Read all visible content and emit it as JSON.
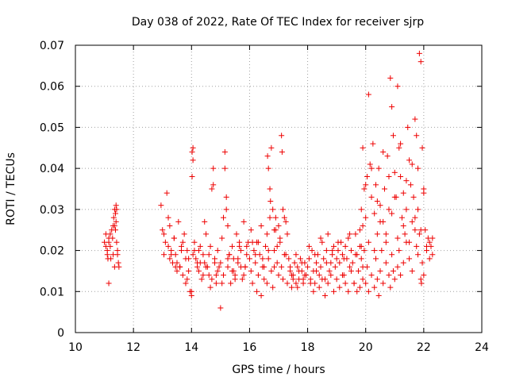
{
  "chart_data": {
    "type": "scatter",
    "title": "Day 038 of 2022, Rate Of TEC Index for receiver sjrp",
    "xlabel": "GPS time / hours",
    "ylabel": "ROTI / TECUs",
    "xlim": [
      10,
      24
    ],
    "ylim": [
      0,
      0.07
    ],
    "xticks": [
      "10",
      "12",
      "14",
      "16",
      "18",
      "20",
      "22",
      "24"
    ],
    "yticks": [
      "0",
      "0.01",
      "0.02",
      "0.03",
      "0.04",
      "0.05",
      "0.06",
      "0.07"
    ],
    "grid": true,
    "marker": "+",
    "color": "#ee0000",
    "series": [
      {
        "name": "ROTI",
        "x": [
          11.0,
          11.05,
          11.1,
          11.12,
          11.15,
          11.2,
          11.25,
          11.3,
          11.32,
          11.35,
          11.38,
          11.4,
          11.42,
          11.45,
          11.48,
          11.5,
          11.05,
          11.15,
          11.22,
          11.28,
          11.35,
          11.45,
          11.1,
          11.2,
          11.3,
          11.4,
          11.35,
          11.38,
          11.42,
          11.15,
          12.95,
          13.0,
          13.05,
          13.1,
          13.15,
          13.2,
          13.25,
          13.3,
          13.35,
          13.4,
          13.45,
          13.5,
          13.55,
          13.6,
          13.65,
          13.7,
          13.75,
          13.8,
          13.85,
          13.9,
          13.95,
          14.0,
          14.02,
          14.05,
          14.1,
          14.15,
          14.2,
          14.25,
          14.3,
          14.35,
          14.4,
          14.45,
          14.5,
          14.55,
          14.6,
          14.65,
          14.7,
          14.75,
          14.8,
          14.85,
          14.9,
          14.95,
          15.0,
          15.05,
          15.1,
          15.15,
          15.2,
          15.25,
          15.3,
          15.35,
          15.4,
          15.45,
          15.5,
          15.55,
          15.6,
          15.65,
          15.7,
          15.75,
          15.8,
          15.85,
          15.9,
          15.95,
          13.2,
          13.3,
          13.4,
          13.5,
          13.6,
          13.7,
          13.8,
          13.9,
          14.0,
          14.02,
          14.05,
          14.1,
          14.2,
          14.3,
          14.4,
          14.5,
          14.6,
          14.7,
          14.75,
          14.8,
          14.9,
          15.0,
          15.1,
          15.15,
          15.2,
          15.25,
          15.3,
          15.4,
          15.5,
          15.6,
          15.7,
          15.8,
          15.9,
          13.05,
          13.25,
          13.45,
          13.65,
          13.85,
          14.05,
          14.25,
          14.45,
          14.65,
          14.85,
          15.05,
          15.25,
          15.45,
          15.65,
          15.85,
          16.0,
          16.05,
          16.1,
          16.15,
          16.2,
          16.25,
          16.3,
          16.35,
          16.4,
          16.45,
          16.5,
          16.55,
          16.6,
          16.65,
          16.7,
          16.75,
          16.8,
          16.85,
          16.9,
          16.95,
          17.0,
          17.05,
          17.1,
          17.15,
          17.2,
          17.25,
          17.3,
          17.35,
          17.4,
          17.45,
          17.5,
          17.55,
          17.6,
          17.65,
          17.7,
          17.75,
          17.8,
          17.85,
          17.9,
          17.95,
          16.1,
          16.2,
          16.3,
          16.4,
          16.5,
          16.6,
          16.62,
          16.65,
          16.7,
          16.72,
          16.75,
          16.8,
          16.85,
          16.9,
          16.95,
          17.0,
          17.1,
          17.12,
          17.15,
          17.2,
          17.3,
          17.4,
          17.5,
          17.6,
          17.7,
          17.8,
          17.9,
          16.05,
          16.25,
          16.45,
          16.65,
          16.85,
          17.05,
          17.25,
          17.45,
          17.65,
          17.85,
          18.0,
          18.05,
          18.1,
          18.15,
          18.2,
          18.25,
          18.3,
          18.35,
          18.4,
          18.45,
          18.5,
          18.55,
          18.6,
          18.65,
          18.7,
          18.75,
          18.8,
          18.85,
          18.9,
          18.95,
          19.0,
          19.05,
          19.1,
          19.15,
          19.2,
          19.25,
          19.3,
          19.35,
          19.4,
          19.45,
          19.5,
          19.55,
          19.6,
          19.65,
          19.7,
          19.75,
          19.8,
          19.85,
          19.9,
          19.95,
          18.1,
          18.2,
          18.3,
          18.4,
          18.5,
          18.6,
          18.7,
          18.8,
          18.9,
          19.0,
          19.1,
          19.2,
          19.3,
          19.4,
          19.5,
          19.6,
          19.7,
          19.8,
          19.9,
          18.05,
          18.25,
          18.45,
          18.65,
          18.85,
          19.05,
          19.25,
          19.45,
          19.65,
          19.85,
          19.8,
          19.85,
          19.9,
          19.95,
          20.0,
          20.05,
          20.1,
          20.15,
          20.2,
          20.25,
          20.3,
          20.35,
          20.4,
          20.45,
          20.5,
          20.55,
          20.6,
          20.65,
          20.7,
          20.75,
          20.8,
          20.85,
          20.9,
          20.95,
          21.0,
          21.05,
          21.1,
          21.15,
          21.2,
          21.25,
          21.3,
          21.35,
          21.4,
          21.45,
          21.5,
          21.55,
          21.6,
          21.65,
          21.7,
          21.75,
          21.8,
          21.85,
          21.9,
          21.95,
          22.0,
          22.05,
          22.1,
          22.15,
          22.2,
          22.25,
          22.3,
          20.0,
          20.05,
          20.1,
          20.2,
          20.3,
          20.35,
          20.4,
          20.45,
          20.5,
          20.6,
          20.7,
          20.8,
          20.85,
          20.9,
          20.95,
          21.0,
          21.1,
          21.15,
          21.2,
          21.3,
          21.4,
          21.5,
          21.6,
          21.7,
          21.75,
          21.8,
          21.85,
          21.9,
          21.92,
          21.95,
          22.0,
          19.9,
          20.1,
          20.3,
          20.5,
          20.7,
          20.9,
          21.1,
          21.3,
          21.5,
          21.7,
          21.9,
          22.1,
          22.3,
          20.0,
          20.2,
          20.4,
          20.6,
          20.8,
          21.0,
          21.2,
          21.4,
          21.6,
          21.8,
          22.0,
          22.2
        ],
        "y": [
          0.022,
          0.024,
          0.019,
          0.018,
          0.023,
          0.021,
          0.025,
          0.026,
          0.028,
          0.03,
          0.029,
          0.031,
          0.022,
          0.02,
          0.017,
          0.016,
          0.021,
          0.012,
          0.018,
          0.023,
          0.026,
          0.019,
          0.02,
          0.024,
          0.019,
          0.027,
          0.016,
          0.025,
          0.03,
          0.022,
          0.031,
          0.025,
          0.019,
          0.022,
          0.034,
          0.028,
          0.026,
          0.02,
          0.017,
          0.023,
          0.019,
          0.015,
          0.027,
          0.016,
          0.021,
          0.014,
          0.024,
          0.012,
          0.02,
          0.018,
          0.01,
          0.009,
          0.038,
          0.045,
          0.022,
          0.018,
          0.016,
          0.02,
          0.017,
          0.013,
          0.019,
          0.027,
          0.024,
          0.016,
          0.014,
          0.021,
          0.035,
          0.04,
          0.017,
          0.012,
          0.02,
          0.016,
          0.006,
          0.023,
          0.028,
          0.044,
          0.033,
          0.016,
          0.019,
          0.012,
          0.021,
          0.018,
          0.014,
          0.024,
          0.017,
          0.022,
          0.02,
          0.013,
          0.027,
          0.016,
          0.019,
          0.022,
          0.021,
          0.019,
          0.023,
          0.017,
          0.016,
          0.022,
          0.018,
          0.015,
          0.01,
          0.044,
          0.042,
          0.02,
          0.017,
          0.021,
          0.014,
          0.016,
          0.019,
          0.013,
          0.036,
          0.018,
          0.015,
          0.017,
          0.014,
          0.04,
          0.03,
          0.026,
          0.019,
          0.015,
          0.013,
          0.018,
          0.016,
          0.014,
          0.021,
          0.024,
          0.018,
          0.016,
          0.02,
          0.013,
          0.019,
          0.015,
          0.017,
          0.011,
          0.014,
          0.012,
          0.018,
          0.015,
          0.021,
          0.016,
          0.018,
          0.015,
          0.012,
          0.02,
          0.017,
          0.01,
          0.022,
          0.019,
          0.026,
          0.016,
          0.013,
          0.021,
          0.024,
          0.018,
          0.028,
          0.015,
          0.011,
          0.02,
          0.025,
          0.017,
          0.014,
          0.022,
          0.016,
          0.013,
          0.019,
          0.027,
          0.012,
          0.018,
          0.015,
          0.011,
          0.014,
          0.017,
          0.012,
          0.016,
          0.013,
          0.018,
          0.015,
          0.012,
          0.017,
          0.014,
          0.022,
          0.019,
          0.014,
          0.009,
          0.016,
          0.012,
          0.043,
          0.04,
          0.035,
          0.032,
          0.045,
          0.03,
          0.025,
          0.028,
          0.021,
          0.026,
          0.048,
          0.044,
          0.03,
          0.028,
          0.024,
          0.016,
          0.013,
          0.019,
          0.015,
          0.017,
          0.014,
          0.025,
          0.022,
          0.018,
          0.02,
          0.016,
          0.023,
          0.019,
          0.014,
          0.011,
          0.013,
          0.016,
          0.018,
          0.013,
          0.02,
          0.015,
          0.012,
          0.017,
          0.019,
          0.014,
          0.016,
          0.022,
          0.018,
          0.013,
          0.02,
          0.024,
          0.015,
          0.017,
          0.019,
          0.021,
          0.016,
          0.018,
          0.02,
          0.017,
          0.022,
          0.019,
          0.014,
          0.021,
          0.018,
          0.023,
          0.016,
          0.02,
          0.017,
          0.012,
          0.024,
          0.019,
          0.015,
          0.021,
          0.018,
          0.016,
          0.02,
          0.012,
          0.01,
          0.015,
          0.011,
          0.013,
          0.009,
          0.012,
          0.014,
          0.01,
          0.013,
          0.011,
          0.014,
          0.012,
          0.01,
          0.015,
          0.012,
          0.01,
          0.011,
          0.013,
          0.021,
          0.019,
          0.023,
          0.017,
          0.02,
          0.022,
          0.018,
          0.024,
          0.019,
          0.021,
          0.025,
          0.03,
          0.045,
          0.035,
          0.028,
          0.038,
          0.058,
          0.041,
          0.033,
          0.046,
          0.029,
          0.036,
          0.024,
          0.04,
          0.031,
          0.02,
          0.027,
          0.035,
          0.022,
          0.043,
          0.03,
          0.062,
          0.055,
          0.048,
          0.039,
          0.033,
          0.06,
          0.045,
          0.038,
          0.028,
          0.034,
          0.024,
          0.03,
          0.05,
          0.042,
          0.036,
          0.027,
          0.033,
          0.052,
          0.048,
          0.04,
          0.068,
          0.066,
          0.045,
          0.035,
          0.025,
          0.02,
          0.023,
          0.018,
          0.021,
          0.019,
          0.012,
          0.016,
          0.01,
          0.014,
          0.011,
          0.018,
          0.013,
          0.009,
          0.015,
          0.012,
          0.017,
          0.014,
          0.011,
          0.019,
          0.015,
          0.013,
          0.016,
          0.02,
          0.014,
          0.017,
          0.022,
          0.018,
          0.015,
          0.025,
          0.021,
          0.019,
          0.024,
          0.013,
          0.012,
          0.017,
          0.014,
          0.026,
          0.022,
          0.02,
          0.027,
          0.024,
          0.029,
          0.023,
          0.026,
          0.022,
          0.028,
          0.025,
          0.021,
          0.023,
          0.036,
          0.04,
          0.032,
          0.044,
          0.038,
          0.033,
          0.046,
          0.037,
          0.041,
          0.03,
          0.034,
          0.022
        ]
      }
    ]
  }
}
